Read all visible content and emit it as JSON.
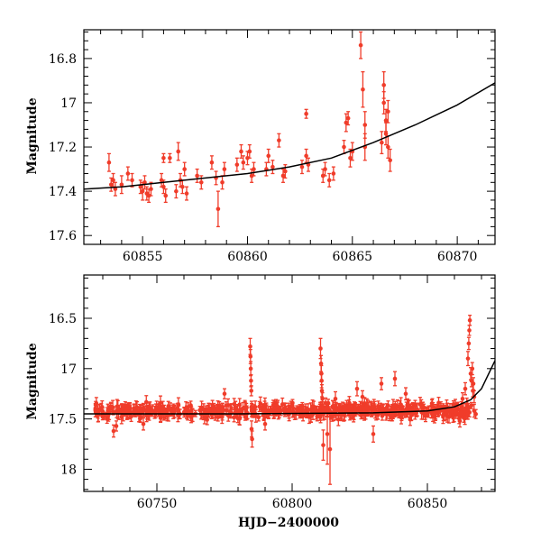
{
  "chart_data": [
    {
      "type": "scatter",
      "title": "",
      "xlabel": "",
      "ylabel": "Magnitude",
      "xlim": [
        60852.2,
        60871.8
      ],
      "ylim": [
        17.64,
        16.67
      ],
      "y_inverted": true,
      "x_ticks": [
        60855,
        60860,
        60865,
        60870
      ],
      "y_ticks": [
        16.8,
        17,
        17.2,
        17.4,
        17.6
      ],
      "x_tick_labels": [
        "60855",
        "60860",
        "60865",
        "60870"
      ],
      "y_tick_labels": [
        "16.8",
        "17",
        "17.2",
        "17.4",
        "17.6"
      ],
      "grid": false,
      "marker_color": "#f03c2a",
      "model_color": "#000000",
      "points": [
        {
          "x": 60853.4,
          "y": 17.27,
          "e": 0.04
        },
        {
          "x": 60853.5,
          "y": 17.37,
          "e": 0.03
        },
        {
          "x": 60853.6,
          "y": 17.35,
          "e": 0.03
        },
        {
          "x": 60853.7,
          "y": 17.39,
          "e": 0.03
        },
        {
          "x": 60854.0,
          "y": 17.37,
          "e": 0.04
        },
        {
          "x": 60854.3,
          "y": 17.32,
          "e": 0.03
        },
        {
          "x": 60854.5,
          "y": 17.35,
          "e": 0.03
        },
        {
          "x": 60854.9,
          "y": 17.38,
          "e": 0.03
        },
        {
          "x": 60855.0,
          "y": 17.4,
          "e": 0.04
        },
        {
          "x": 60855.1,
          "y": 17.36,
          "e": 0.03
        },
        {
          "x": 60855.2,
          "y": 17.41,
          "e": 0.03
        },
        {
          "x": 60855.3,
          "y": 17.42,
          "e": 0.03
        },
        {
          "x": 60855.4,
          "y": 17.39,
          "e": 0.03
        },
        {
          "x": 60855.9,
          "y": 17.35,
          "e": 0.03
        },
        {
          "x": 60856.0,
          "y": 17.38,
          "e": 0.03
        },
        {
          "x": 60856.1,
          "y": 17.42,
          "e": 0.03
        },
        {
          "x": 60856.0,
          "y": 17.25,
          "e": 0.02
        },
        {
          "x": 60856.3,
          "y": 17.25,
          "e": 0.02
        },
        {
          "x": 60856.6,
          "y": 17.4,
          "e": 0.03
        },
        {
          "x": 60856.7,
          "y": 17.22,
          "e": 0.04
        },
        {
          "x": 60856.8,
          "y": 17.35,
          "e": 0.03
        },
        {
          "x": 60856.9,
          "y": 17.38,
          "e": 0.03
        },
        {
          "x": 60857.0,
          "y": 17.3,
          "e": 0.03
        },
        {
          "x": 60857.1,
          "y": 17.41,
          "e": 0.03
        },
        {
          "x": 60857.6,
          "y": 17.33,
          "e": 0.03
        },
        {
          "x": 60857.8,
          "y": 17.36,
          "e": 0.03
        },
        {
          "x": 60858.3,
          "y": 17.27,
          "e": 0.03
        },
        {
          "x": 60858.5,
          "y": 17.34,
          "e": 0.03
        },
        {
          "x": 60858.6,
          "y": 17.48,
          "e": 0.08
        },
        {
          "x": 60858.8,
          "y": 17.36,
          "e": 0.03
        },
        {
          "x": 60858.9,
          "y": 17.3,
          "e": 0.03
        },
        {
          "x": 60859.5,
          "y": 17.28,
          "e": 0.03
        },
        {
          "x": 60859.7,
          "y": 17.22,
          "e": 0.03
        },
        {
          "x": 60859.8,
          "y": 17.27,
          "e": 0.03
        },
        {
          "x": 60860.0,
          "y": 17.25,
          "e": 0.03
        },
        {
          "x": 60860.1,
          "y": 17.22,
          "e": 0.03
        },
        {
          "x": 60860.2,
          "y": 17.33,
          "e": 0.03
        },
        {
          "x": 60860.3,
          "y": 17.3,
          "e": 0.03
        },
        {
          "x": 60860.9,
          "y": 17.3,
          "e": 0.03
        },
        {
          "x": 60861.0,
          "y": 17.24,
          "e": 0.03
        },
        {
          "x": 60861.2,
          "y": 17.29,
          "e": 0.03
        },
        {
          "x": 60861.5,
          "y": 17.17,
          "e": 0.03
        },
        {
          "x": 60861.7,
          "y": 17.33,
          "e": 0.03
        },
        {
          "x": 60861.8,
          "y": 17.31,
          "e": 0.03
        },
        {
          "x": 60862.6,
          "y": 17.29,
          "e": 0.03
        },
        {
          "x": 60862.8,
          "y": 17.24,
          "e": 0.03
        },
        {
          "x": 60862.8,
          "y": 17.05,
          "e": 0.02
        },
        {
          "x": 60862.9,
          "y": 17.28,
          "e": 0.03
        },
        {
          "x": 60863.6,
          "y": 17.33,
          "e": 0.03
        },
        {
          "x": 60863.7,
          "y": 17.3,
          "e": 0.03
        },
        {
          "x": 60863.9,
          "y": 17.35,
          "e": 0.03
        },
        {
          "x": 60864.1,
          "y": 17.32,
          "e": 0.03
        },
        {
          "x": 60864.6,
          "y": 17.2,
          "e": 0.03
        },
        {
          "x": 60864.7,
          "y": 17.09,
          "e": 0.04
        },
        {
          "x": 60864.8,
          "y": 17.07,
          "e": 0.03
        },
        {
          "x": 60864.9,
          "y": 17.25,
          "e": 0.04
        },
        {
          "x": 60865.0,
          "y": 17.22,
          "e": 0.04
        },
        {
          "x": 60865.4,
          "y": 16.74,
          "e": 0.06
        },
        {
          "x": 60865.5,
          "y": 16.94,
          "e": 0.08
        },
        {
          "x": 60865.6,
          "y": 17.1,
          "e": 0.06
        },
        {
          "x": 60865.6,
          "y": 17.2,
          "e": 0.06
        },
        {
          "x": 60866.4,
          "y": 17.18,
          "e": 0.05
        },
        {
          "x": 60866.5,
          "y": 16.92,
          "e": 0.06
        },
        {
          "x": 60866.5,
          "y": 17.0,
          "e": 0.05
        },
        {
          "x": 60866.6,
          "y": 17.08,
          "e": 0.05
        },
        {
          "x": 60866.6,
          "y": 17.14,
          "e": 0.05
        },
        {
          "x": 60866.7,
          "y": 17.04,
          "e": 0.05
        },
        {
          "x": 60866.7,
          "y": 17.2,
          "e": 0.05
        },
        {
          "x": 60866.8,
          "y": 17.26,
          "e": 0.05
        }
      ],
      "model": {
        "x": [
          60852.2,
          60854,
          60856,
          60858,
          60860,
          60862,
          60864,
          60866,
          60868,
          60870,
          60871.8
        ],
        "y": [
          17.39,
          17.38,
          17.36,
          17.34,
          17.32,
          17.29,
          17.25,
          17.18,
          17.1,
          17.01,
          16.91
        ]
      }
    },
    {
      "type": "scatter",
      "title": "",
      "xlabel": "HJD−2400000",
      "ylabel": "Magnitude",
      "xlim": [
        60723,
        60875
      ],
      "ylim": [
        18.22,
        16.07
      ],
      "y_inverted": true,
      "x_ticks": [
        60750,
        60800,
        60850
      ],
      "y_ticks": [
        16.5,
        17,
        17.5,
        18
      ],
      "x_tick_labels": [
        "60750",
        "60800",
        "60850"
      ],
      "y_tick_labels": [
        "16.5",
        "17",
        "17.5",
        "18"
      ],
      "grid": false,
      "marker_color": "#f03c2a",
      "model_color": "#000000",
      "dense_segments": [
        {
          "x0": 60727,
          "x1": 60868,
          "n": 560,
          "mean": 17.42,
          "scatter": 0.07,
          "err": 0.05
        }
      ],
      "points": [
        {
          "x": 60734,
          "y": 17.62,
          "e": 0.06
        },
        {
          "x": 60735,
          "y": 17.57,
          "e": 0.05
        },
        {
          "x": 60745,
          "y": 17.55,
          "e": 0.06
        },
        {
          "x": 60775,
          "y": 17.25,
          "e": 0.05
        },
        {
          "x": 60784.5,
          "y": 16.78,
          "e": 0.08
        },
        {
          "x": 60784.6,
          "y": 16.88,
          "e": 0.07
        },
        {
          "x": 60784.7,
          "y": 17.0,
          "e": 0.07
        },
        {
          "x": 60784.8,
          "y": 17.12,
          "e": 0.06
        },
        {
          "x": 60784.9,
          "y": 17.22,
          "e": 0.05
        },
        {
          "x": 60785,
          "y": 17.6,
          "e": 0.08
        },
        {
          "x": 60785.2,
          "y": 17.7,
          "e": 0.08
        },
        {
          "x": 60790,
          "y": 17.55,
          "e": 0.06
        },
        {
          "x": 60810.5,
          "y": 16.8,
          "e": 0.1
        },
        {
          "x": 60810.7,
          "y": 16.95,
          "e": 0.08
        },
        {
          "x": 60810.8,
          "y": 17.05,
          "e": 0.08
        },
        {
          "x": 60810.9,
          "y": 17.12,
          "e": 0.07
        },
        {
          "x": 60811.0,
          "y": 17.22,
          "e": 0.06
        },
        {
          "x": 60811.2,
          "y": 17.3,
          "e": 0.06
        },
        {
          "x": 60811.5,
          "y": 17.76,
          "e": 0.15
        },
        {
          "x": 60813,
          "y": 17.65,
          "e": 0.3
        },
        {
          "x": 60814,
          "y": 17.8,
          "e": 0.35
        },
        {
          "x": 60816,
          "y": 17.3,
          "e": 0.07
        },
        {
          "x": 60824,
          "y": 17.2,
          "e": 0.07
        },
        {
          "x": 60826,
          "y": 17.28,
          "e": 0.06
        },
        {
          "x": 60830,
          "y": 17.65,
          "e": 0.08
        },
        {
          "x": 60833,
          "y": 17.15,
          "e": 0.06
        },
        {
          "x": 60838,
          "y": 17.1,
          "e": 0.07
        },
        {
          "x": 60842,
          "y": 17.25,
          "e": 0.06
        },
        {
          "x": 60858,
          "y": 17.48,
          "e": 0.06
        },
        {
          "x": 60862,
          "y": 17.52,
          "e": 0.06
        },
        {
          "x": 60863,
          "y": 17.3,
          "e": 0.06
        },
        {
          "x": 60864,
          "y": 17.2,
          "e": 0.06
        },
        {
          "x": 60865,
          "y": 16.9,
          "e": 0.07
        },
        {
          "x": 60865.3,
          "y": 16.75,
          "e": 0.06
        },
        {
          "x": 60865.5,
          "y": 16.62,
          "e": 0.05
        },
        {
          "x": 60865.7,
          "y": 16.52,
          "e": 0.05
        },
        {
          "x": 60866,
          "y": 17.05,
          "e": 0.06
        },
        {
          "x": 60866.3,
          "y": 17.12,
          "e": 0.06
        },
        {
          "x": 60866.6,
          "y": 17.0,
          "e": 0.06
        },
        {
          "x": 60866.8,
          "y": 17.22,
          "e": 0.06
        },
        {
          "x": 60867,
          "y": 17.15,
          "e": 0.06
        },
        {
          "x": 60867.3,
          "y": 17.28,
          "e": 0.06
        }
      ],
      "model": {
        "x": [
          60723,
          60780,
          60830,
          60850,
          60860,
          60866,
          60870,
          60875
        ],
        "y": [
          17.45,
          17.45,
          17.44,
          17.42,
          17.38,
          17.31,
          17.2,
          16.92
        ]
      }
    }
  ]
}
